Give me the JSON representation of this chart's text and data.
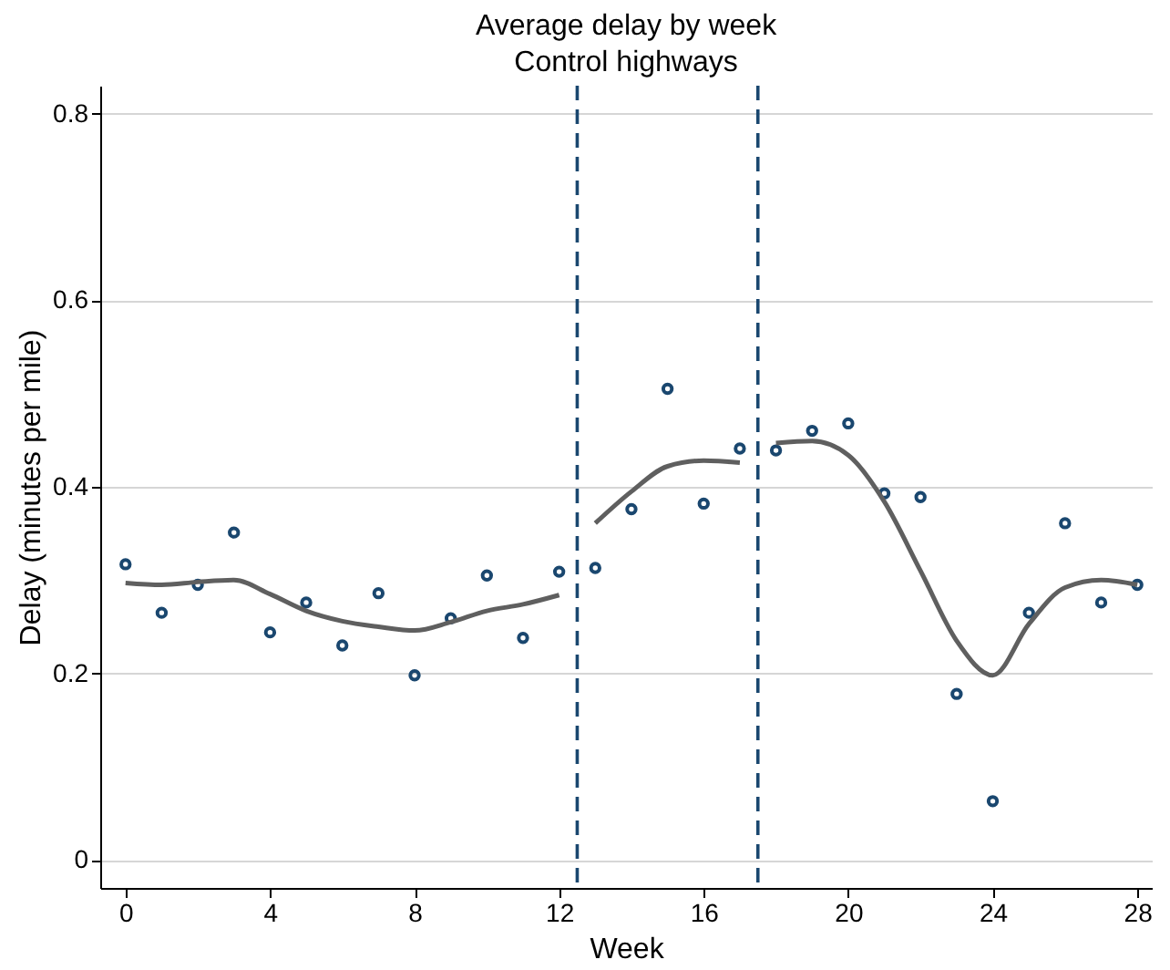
{
  "chart_data": {
    "type": "scatter",
    "title": "Average delay by week",
    "subtitle": "Control highways",
    "xlabel": "Week",
    "ylabel": "Delay (minutes per mile)",
    "x": [
      0,
      1,
      2,
      3,
      4,
      5,
      6,
      7,
      8,
      9,
      10,
      11,
      12,
      13,
      14,
      15,
      16,
      17,
      18,
      19,
      20,
      21,
      22,
      23,
      24,
      25,
      26,
      27,
      28
    ],
    "series": [
      {
        "marker": "circle",
        "color": "#1a476f",
        "values": [
          0.317,
          0.265,
          0.295,
          0.351,
          0.244,
          0.276,
          0.23,
          0.286,
          0.198,
          0.259,
          0.305,
          0.238,
          0.309,
          0.313,
          0.376,
          0.505,
          0.382,
          0.441,
          0.439,
          0.46,
          0.468,
          0.393,
          0.389,
          0.178,
          0.063,
          0.265,
          0.361,
          0.276,
          0.295
        ]
      },
      {
        "type": "line",
        "color": "#5f5f5f",
        "x": [
          0,
          1,
          2,
          3,
          4,
          5,
          6,
          7,
          8,
          9,
          10,
          11,
          12
        ],
        "values": [
          0.297,
          0.295,
          0.298,
          0.3,
          0.285,
          0.267,
          0.256,
          0.25,
          0.246,
          0.255,
          0.267,
          0.274,
          0.284
        ]
      },
      {
        "type": "line",
        "color": "#5f5f5f",
        "x": [
          13,
          14,
          15,
          16,
          17
        ],
        "values": [
          0.361,
          0.395,
          0.422,
          0.428,
          0.426
        ]
      },
      {
        "type": "line",
        "color": "#5f5f5f",
        "x": [
          18,
          19,
          20,
          21,
          22,
          23,
          24,
          25,
          26,
          27,
          28
        ],
        "values": [
          0.447,
          0.449,
          0.434,
          0.384,
          0.31,
          0.235,
          0.198,
          0.253,
          0.292,
          0.3,
          0.295
        ]
      }
    ],
    "xlim": [
      -0.7,
      28.4
    ],
    "xticks": [
      0,
      4,
      8,
      12,
      16,
      20,
      24,
      28
    ],
    "ylim": [
      -0.03,
      0.83
    ],
    "yticks": [
      {
        "value": 0,
        "label": "0"
      },
      0.2,
      0.4,
      0.6,
      0.8
    ],
    "ref_lines": [
      {
        "axis": "x",
        "value": 12.5,
        "color": "#1a476f",
        "line_style": "dashed"
      },
      {
        "axis": "x",
        "value": 17.5,
        "color": "#1a476f",
        "line_style": "dashed"
      }
    ],
    "grid": "y"
  }
}
